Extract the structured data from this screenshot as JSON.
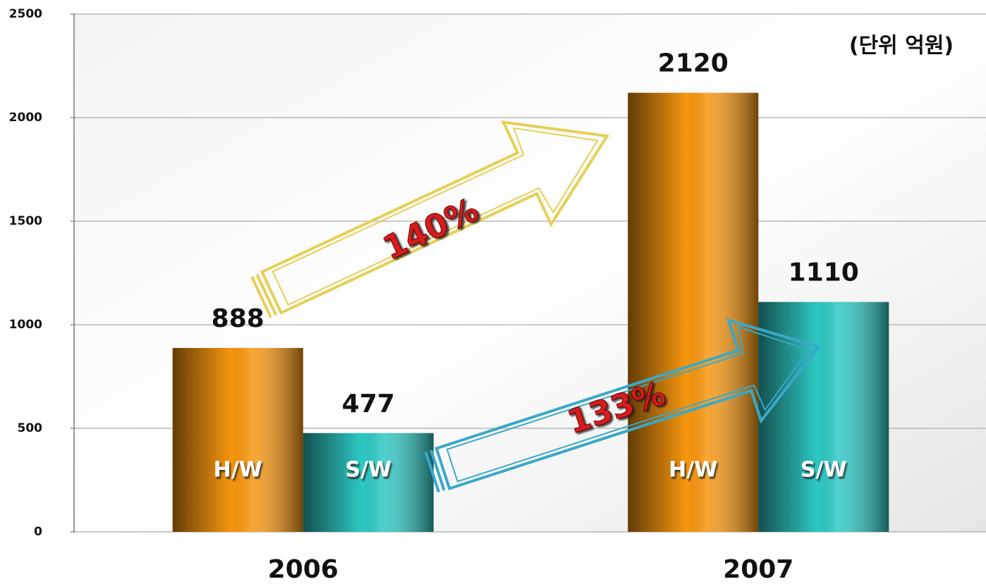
{
  "chart_data": {
    "type": "bar",
    "categories": [
      "2006",
      "2007"
    ],
    "series": [
      {
        "name": "H/W",
        "color": "#f7960f",
        "values": [
          888,
          2120
        ]
      },
      {
        "name": "S/W",
        "color": "#2ec8c4",
        "values": [
          477,
          1110
        ]
      }
    ],
    "ylim": [
      0,
      2500
    ],
    "yticks": [
      0,
      500,
      1000,
      1500,
      2000,
      2500
    ],
    "grid": true,
    "annotations": [
      "(단위 억원)",
      "140%",
      "133%"
    ]
  }
}
